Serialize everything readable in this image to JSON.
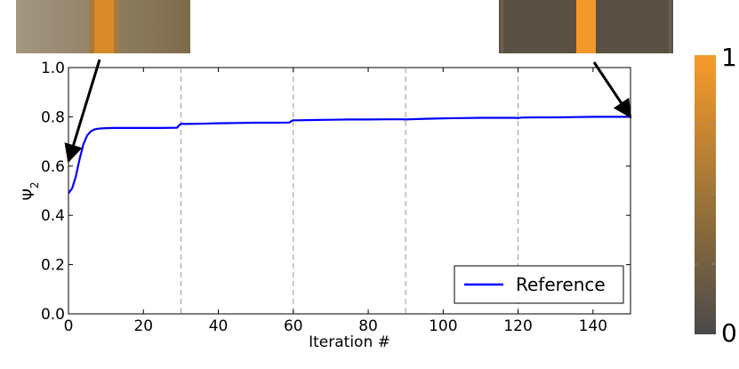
{
  "chart_data": {
    "type": "line",
    "xlabel": "Iteration #",
    "ylabel_base": "Ψ",
    "ylabel_sub": "2",
    "xlim": [
      0,
      150
    ],
    "ylim": [
      0.0,
      1.0
    ],
    "xticks": [
      "0",
      "20",
      "40",
      "60",
      "80",
      "100",
      "120",
      "140"
    ],
    "yticks": [
      "0.0",
      "0.2",
      "0.4",
      "0.6",
      "0.8",
      "1.0"
    ],
    "vlines": [
      30,
      60,
      90,
      120
    ],
    "series": [
      {
        "name": "Reference",
        "color": "#0000ff",
        "x": [
          0,
          1,
          2,
          3,
          4,
          5,
          6,
          7,
          8,
          9,
          10,
          12,
          15,
          20,
          25,
          29,
          29.5,
          30,
          31,
          35,
          40,
          45,
          50,
          55,
          59,
          59.5,
          60,
          61,
          65,
          70,
          75,
          80,
          85,
          89,
          90,
          91,
          95,
          100,
          105,
          110,
          115,
          119,
          120,
          121,
          125,
          130,
          135,
          140,
          145,
          150
        ],
        "y": [
          0.49,
          0.51,
          0.56,
          0.63,
          0.69,
          0.725,
          0.742,
          0.749,
          0.752,
          0.753,
          0.754,
          0.755,
          0.755,
          0.755,
          0.755,
          0.756,
          0.765,
          0.772,
          0.771,
          0.772,
          0.774,
          0.775,
          0.776,
          0.776,
          0.777,
          0.783,
          0.786,
          0.786,
          0.787,
          0.788,
          0.789,
          0.789,
          0.79,
          0.79,
          0.789,
          0.79,
          0.792,
          0.794,
          0.795,
          0.796,
          0.796,
          0.796,
          0.795,
          0.797,
          0.798,
          0.798,
          0.799,
          0.8,
          0.8,
          0.8
        ]
      }
    ],
    "legend": {
      "label": "Reference",
      "placement": "lower-right"
    },
    "annotations": [
      {
        "x": 0,
        "y": 0.62,
        "target": "initial-image"
      },
      {
        "x": 150,
        "y": 0.8,
        "target": "final-image"
      }
    ],
    "colorbar": {
      "top_label": "1",
      "bottom_label": "0",
      "top_color": "#f79b2a",
      "bottom_color": "#4a4a4a"
    },
    "images": {
      "initial": {
        "stripe_color": "#d98a2a",
        "base_color": "#7d6b4a"
      },
      "final": {
        "stripe_color": "#f3992b",
        "base_color": "#5a5144"
      }
    }
  }
}
